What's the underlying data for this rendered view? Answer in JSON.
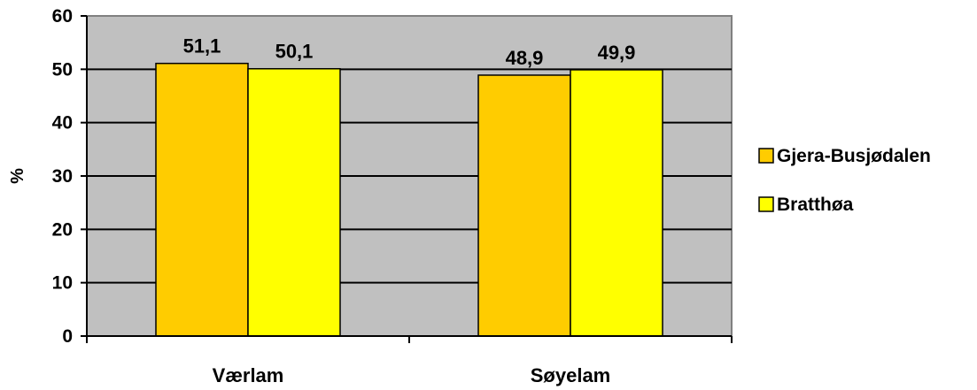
{
  "chart_data": {
    "type": "bar",
    "title": "",
    "xlabel": "",
    "ylabel": "%",
    "categories": [
      "Værlam",
      "Søyelam"
    ],
    "series": [
      {
        "name": "Gjera-Busjødalen",
        "values": [
          51.1,
          48.9
        ],
        "labels": [
          "51,1",
          "48,9"
        ],
        "color": "#ffcc00"
      },
      {
        "name": "Bratthøa",
        "values": [
          50.1,
          49.9
        ],
        "labels": [
          "50,1",
          "49,9"
        ],
        "color": "#ffff00"
      }
    ],
    "ylim": [
      0,
      60
    ],
    "yticks": [
      0,
      10,
      20,
      30,
      40,
      50,
      60
    ],
    "grid": true,
    "plot_background": "#c0c0c0",
    "legend_position": "right"
  }
}
